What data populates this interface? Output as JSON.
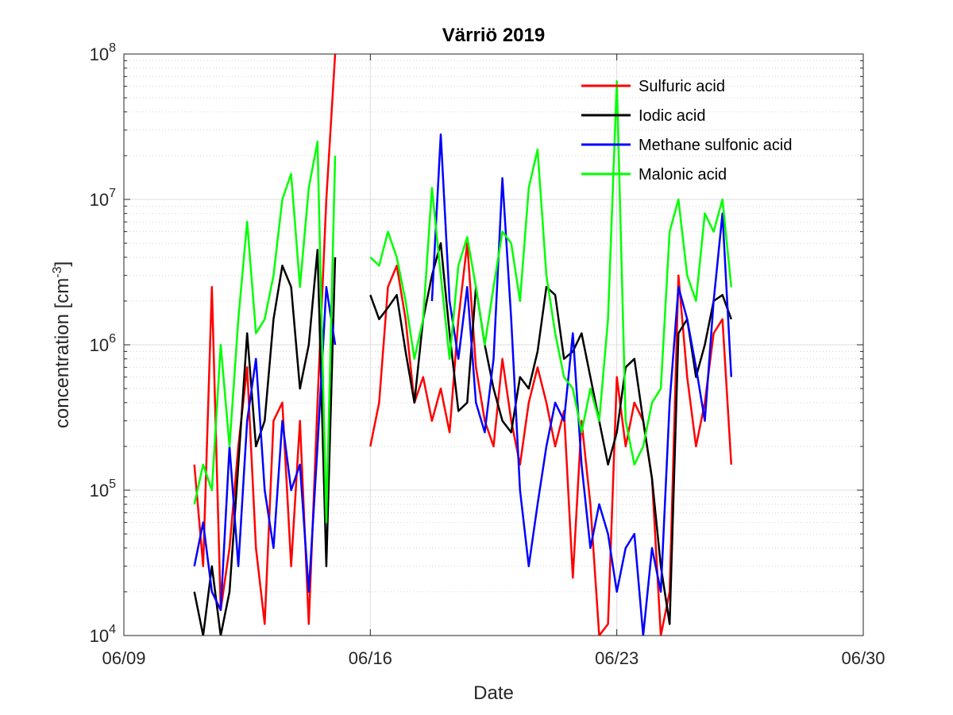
{
  "chart_data": {
    "type": "line",
    "title": "Värriö 2019",
    "xlabel": "Date",
    "ylabel": "concentration [cm",
    "ylabel_unit_exp": "-3",
    "ylabel_close": "]",
    "x_scale": "date",
    "y_scale": "log",
    "xlim": [
      "2019-06-09",
      "2019-06-30"
    ],
    "ylim": [
      10000,
      100000000
    ],
    "x_ticks": [
      {
        "date": "2019-06-09",
        "label": "06/09"
      },
      {
        "date": "2019-06-16",
        "label": "06/16"
      },
      {
        "date": "2019-06-23",
        "label": "06/23"
      },
      {
        "date": "2019-06-30",
        "label": "06/30"
      }
    ],
    "y_ticks": [
      {
        "value": 10000,
        "base": "10",
        "exp": "4"
      },
      {
        "value": 100000,
        "base": "10",
        "exp": "5"
      },
      {
        "value": 1000000,
        "base": "10",
        "exp": "6"
      },
      {
        "value": 10000000,
        "base": "10",
        "exp": "7"
      },
      {
        "value": 100000000,
        "base": "10",
        "exp": "8"
      }
    ],
    "grid": true,
    "minor_grid": true,
    "legend_position": "top-right",
    "series": [
      {
        "name": "Sulfuric acid",
        "color": "#ff0000",
        "x": [
          "2019-06-11 00:00",
          "2019-06-11 06:00",
          "2019-06-11 12:00",
          "2019-06-11 18:00",
          "2019-06-12 00:00",
          "2019-06-12 06:00",
          "2019-06-12 12:00",
          "2019-06-12 18:00",
          "2019-06-13 00:00",
          "2019-06-13 06:00",
          "2019-06-13 12:00",
          "2019-06-13 18:00",
          "2019-06-14 00:00",
          "2019-06-14 06:00",
          "2019-06-14 12:00",
          "2019-06-14 18:00",
          "2019-06-15 00:00",
          null,
          "2019-06-16 00:00",
          "2019-06-16 06:00",
          "2019-06-16 12:00",
          "2019-06-16 18:00",
          "2019-06-17 00:00",
          "2019-06-17 06:00",
          "2019-06-17 12:00",
          "2019-06-17 18:00",
          "2019-06-18 00:00",
          "2019-06-18 06:00",
          "2019-06-18 12:00",
          "2019-06-18 18:00",
          "2019-06-19 00:00",
          "2019-06-19 06:00",
          "2019-06-19 12:00",
          "2019-06-19 18:00",
          "2019-06-20 00:00",
          "2019-06-20 06:00",
          "2019-06-20 12:00",
          "2019-06-20 18:00",
          "2019-06-21 00:00",
          "2019-06-21 06:00",
          "2019-06-21 12:00",
          "2019-06-21 18:00",
          "2019-06-22 00:00",
          "2019-06-22 06:00",
          "2019-06-22 12:00",
          "2019-06-22 18:00",
          "2019-06-23 00:00",
          "2019-06-23 06:00",
          "2019-06-23 12:00",
          "2019-06-23 18:00",
          "2019-06-24 00:00",
          "2019-06-24 06:00",
          "2019-06-24 12:00",
          "2019-06-24 18:00",
          "2019-06-25 00:00",
          "2019-06-25 06:00",
          "2019-06-25 12:00",
          "2019-06-25 18:00",
          "2019-06-26 00:00",
          "2019-06-26 06:00"
        ],
        "y": [
          150000,
          30000,
          2500000,
          15000,
          40000,
          200000,
          700000,
          40000,
          12000,
          300000,
          400000,
          30000,
          300000,
          12000,
          400000,
          10000000,
          100000000,
          null,
          200000,
          400000,
          2500000,
          3500000,
          1500000,
          400000,
          600000,
          300000,
          500000,
          250000,
          1500000,
          5000000,
          700000,
          300000,
          200000,
          800000,
          300000,
          150000,
          400000,
          700000,
          400000,
          200000,
          350000,
          25000,
          300000,
          80000,
          10000,
          12000,
          600000,
          200000,
          400000,
          300000,
          120000,
          10000,
          20000,
          3000000,
          600000,
          200000,
          400000,
          1200000,
          1500000,
          150000
        ]
      },
      {
        "name": "Iodic acid",
        "color": "#000000",
        "x": [
          "2019-06-11 00:00",
          "2019-06-11 06:00",
          "2019-06-11 12:00",
          "2019-06-11 18:00",
          "2019-06-12 00:00",
          "2019-06-12 06:00",
          "2019-06-12 12:00",
          "2019-06-12 18:00",
          "2019-06-13 00:00",
          "2019-06-13 06:00",
          "2019-06-13 12:00",
          "2019-06-13 18:00",
          "2019-06-14 00:00",
          "2019-06-14 06:00",
          "2019-06-14 12:00",
          "2019-06-14 18:00",
          "2019-06-15 00:00",
          null,
          "2019-06-16 00:00",
          "2019-06-16 06:00",
          "2019-06-16 12:00",
          "2019-06-16 18:00",
          "2019-06-17 00:00",
          "2019-06-17 06:00",
          "2019-06-17 12:00",
          "2019-06-17 18:00",
          "2019-06-18 00:00",
          "2019-06-18 06:00",
          "2019-06-18 12:00",
          "2019-06-18 18:00",
          "2019-06-19 00:00",
          "2019-06-19 06:00",
          "2019-06-19 12:00",
          "2019-06-19 18:00",
          "2019-06-20 00:00",
          "2019-06-20 06:00",
          "2019-06-20 12:00",
          "2019-06-20 18:00",
          "2019-06-21 00:00",
          "2019-06-21 06:00",
          "2019-06-21 12:00",
          "2019-06-21 18:00",
          "2019-06-22 00:00",
          "2019-06-22 06:00",
          "2019-06-22 12:00",
          "2019-06-22 18:00",
          "2019-06-23 00:00",
          "2019-06-23 06:00",
          "2019-06-23 12:00",
          "2019-06-23 18:00",
          "2019-06-24 00:00",
          "2019-06-24 06:00",
          "2019-06-24 12:00",
          "2019-06-24 18:00",
          "2019-06-25 00:00",
          "2019-06-25 06:00",
          "2019-06-25 12:00",
          "2019-06-25 18:00",
          "2019-06-26 00:00",
          "2019-06-26 06:00"
        ],
        "y": [
          20000,
          10000,
          30000,
          10000,
          20000,
          150000,
          1200000,
          200000,
          300000,
          1500000,
          3500000,
          2500000,
          500000,
          1000000,
          4500000,
          30000,
          4000000,
          null,
          2200000,
          1500000,
          1800000,
          2200000,
          900000,
          400000,
          1500000,
          3000000,
          5000000,
          1200000,
          350000,
          400000,
          2500000,
          1000000,
          500000,
          300000,
          250000,
          600000,
          500000,
          900000,
          2500000,
          2200000,
          800000,
          900000,
          1200000,
          600000,
          300000,
          150000,
          250000,
          700000,
          800000,
          300000,
          120000,
          30000,
          12000,
          1200000,
          1500000,
          600000,
          1000000,
          2000000,
          2200000,
          1500000
        ]
      },
      {
        "name": "Methane sulfonic acid",
        "color": "#0000ff",
        "x": [
          "2019-06-11 00:00",
          "2019-06-11 06:00",
          "2019-06-11 12:00",
          "2019-06-11 18:00",
          "2019-06-12 00:00",
          "2019-06-12 06:00",
          "2019-06-12 12:00",
          "2019-06-12 18:00",
          "2019-06-13 00:00",
          "2019-06-13 06:00",
          "2019-06-13 12:00",
          "2019-06-13 18:00",
          "2019-06-14 00:00",
          "2019-06-14 06:00",
          "2019-06-14 12:00",
          "2019-06-14 18:00",
          "2019-06-15 00:00",
          null,
          "2019-06-16 00:00",
          "2019-06-16 06:00",
          "2019-06-16 12:00",
          "2019-06-16 18:00",
          "2019-06-17 00:00",
          "2019-06-17 06:00",
          "2019-06-17 12:00",
          "2019-06-17 18:00",
          "2019-06-18 00:00",
          "2019-06-18 06:00",
          "2019-06-18 12:00",
          "2019-06-18 18:00",
          "2019-06-19 00:00",
          "2019-06-19 06:00",
          "2019-06-19 12:00",
          "2019-06-19 18:00",
          "2019-06-20 00:00",
          "2019-06-20 06:00",
          "2019-06-20 12:00",
          "2019-06-20 18:00",
          "2019-06-21 00:00",
          "2019-06-21 06:00",
          "2019-06-21 12:00",
          "2019-06-21 18:00",
          "2019-06-22 00:00",
          "2019-06-22 06:00",
          "2019-06-22 12:00",
          "2019-06-22 18:00",
          "2019-06-23 00:00",
          "2019-06-23 06:00",
          "2019-06-23 12:00",
          "2019-06-23 18:00",
          "2019-06-24 00:00",
          "2019-06-24 06:00",
          "2019-06-24 12:00",
          "2019-06-24 18:00",
          "2019-06-25 00:00",
          "2019-06-25 06:00",
          "2019-06-25 12:00",
          "2019-06-25 18:00",
          "2019-06-26 00:00",
          "2019-06-26 06:00"
        ],
        "y": [
          30000,
          60000,
          20000,
          15000,
          200000,
          30000,
          300000,
          800000,
          100000,
          40000,
          300000,
          100000,
          150000,
          20000,
          200000,
          2500000,
          1000000,
          null,
          null,
          null,
          null,
          null,
          null,
          null,
          null,
          2000000,
          28000000,
          2000000,
          800000,
          2500000,
          400000,
          250000,
          800000,
          14000000,
          1500000,
          100000,
          30000,
          80000,
          200000,
          400000,
          300000,
          1200000,
          150000,
          40000,
          80000,
          50000,
          20000,
          40000,
          50000,
          10000,
          40000,
          20000,
          400000,
          2500000,
          1500000,
          700000,
          300000,
          2000000,
          8000000,
          600000
        ]
      },
      {
        "name": "Malonic acid",
        "color": "#00ff00",
        "x": [
          "2019-06-11 00:00",
          "2019-06-11 06:00",
          "2019-06-11 12:00",
          "2019-06-11 18:00",
          "2019-06-12 00:00",
          "2019-06-12 06:00",
          "2019-06-12 12:00",
          "2019-06-12 18:00",
          "2019-06-13 00:00",
          "2019-06-13 06:00",
          "2019-06-13 12:00",
          "2019-06-13 18:00",
          "2019-06-14 00:00",
          "2019-06-14 06:00",
          "2019-06-14 12:00",
          "2019-06-14 18:00",
          "2019-06-15 00:00",
          null,
          "2019-06-16 00:00",
          "2019-06-16 06:00",
          "2019-06-16 12:00",
          "2019-06-16 18:00",
          "2019-06-17 00:00",
          "2019-06-17 06:00",
          "2019-06-17 12:00",
          "2019-06-17 18:00",
          "2019-06-18 00:00",
          "2019-06-18 06:00",
          "2019-06-18 12:00",
          "2019-06-18 18:00",
          "2019-06-19 00:00",
          "2019-06-19 06:00",
          "2019-06-19 12:00",
          "2019-06-19 18:00",
          "2019-06-20 00:00",
          "2019-06-20 06:00",
          "2019-06-20 12:00",
          "2019-06-20 18:00",
          "2019-06-21 00:00",
          "2019-06-21 06:00",
          "2019-06-21 12:00",
          "2019-06-21 18:00",
          "2019-06-22 00:00",
          "2019-06-22 06:00",
          "2019-06-22 12:00",
          "2019-06-22 18:00",
          "2019-06-23 00:00",
          "2019-06-23 06:00",
          "2019-06-23 12:00",
          "2019-06-23 18:00",
          "2019-06-24 00:00",
          "2019-06-24 06:00",
          "2019-06-24 12:00",
          "2019-06-24 18:00",
          "2019-06-25 00:00",
          "2019-06-25 06:00",
          "2019-06-25 12:00",
          "2019-06-25 18:00",
          "2019-06-26 00:00",
          "2019-06-26 06:00"
        ],
        "y": [
          80000,
          150000,
          100000,
          1000000,
          200000,
          1500000,
          7000000,
          1200000,
          1500000,
          3000000,
          10000000,
          15000000,
          2500000,
          12000000,
          25000000,
          60000,
          20000000,
          null,
          4000000,
          3500000,
          6000000,
          4000000,
          2000000,
          800000,
          1500000,
          12000000,
          3000000,
          800000,
          3500000,
          5500000,
          2500000,
          1000000,
          2500000,
          6000000,
          5000000,
          2000000,
          12000000,
          22000000,
          3000000,
          1200000,
          600000,
          500000,
          250000,
          500000,
          300000,
          1500000,
          65000000,
          300000,
          150000,
          200000,
          400000,
          500000,
          6000000,
          10000000,
          3000000,
          2000000,
          8000000,
          6000000,
          10000000,
          2500000
        ]
      }
    ]
  }
}
